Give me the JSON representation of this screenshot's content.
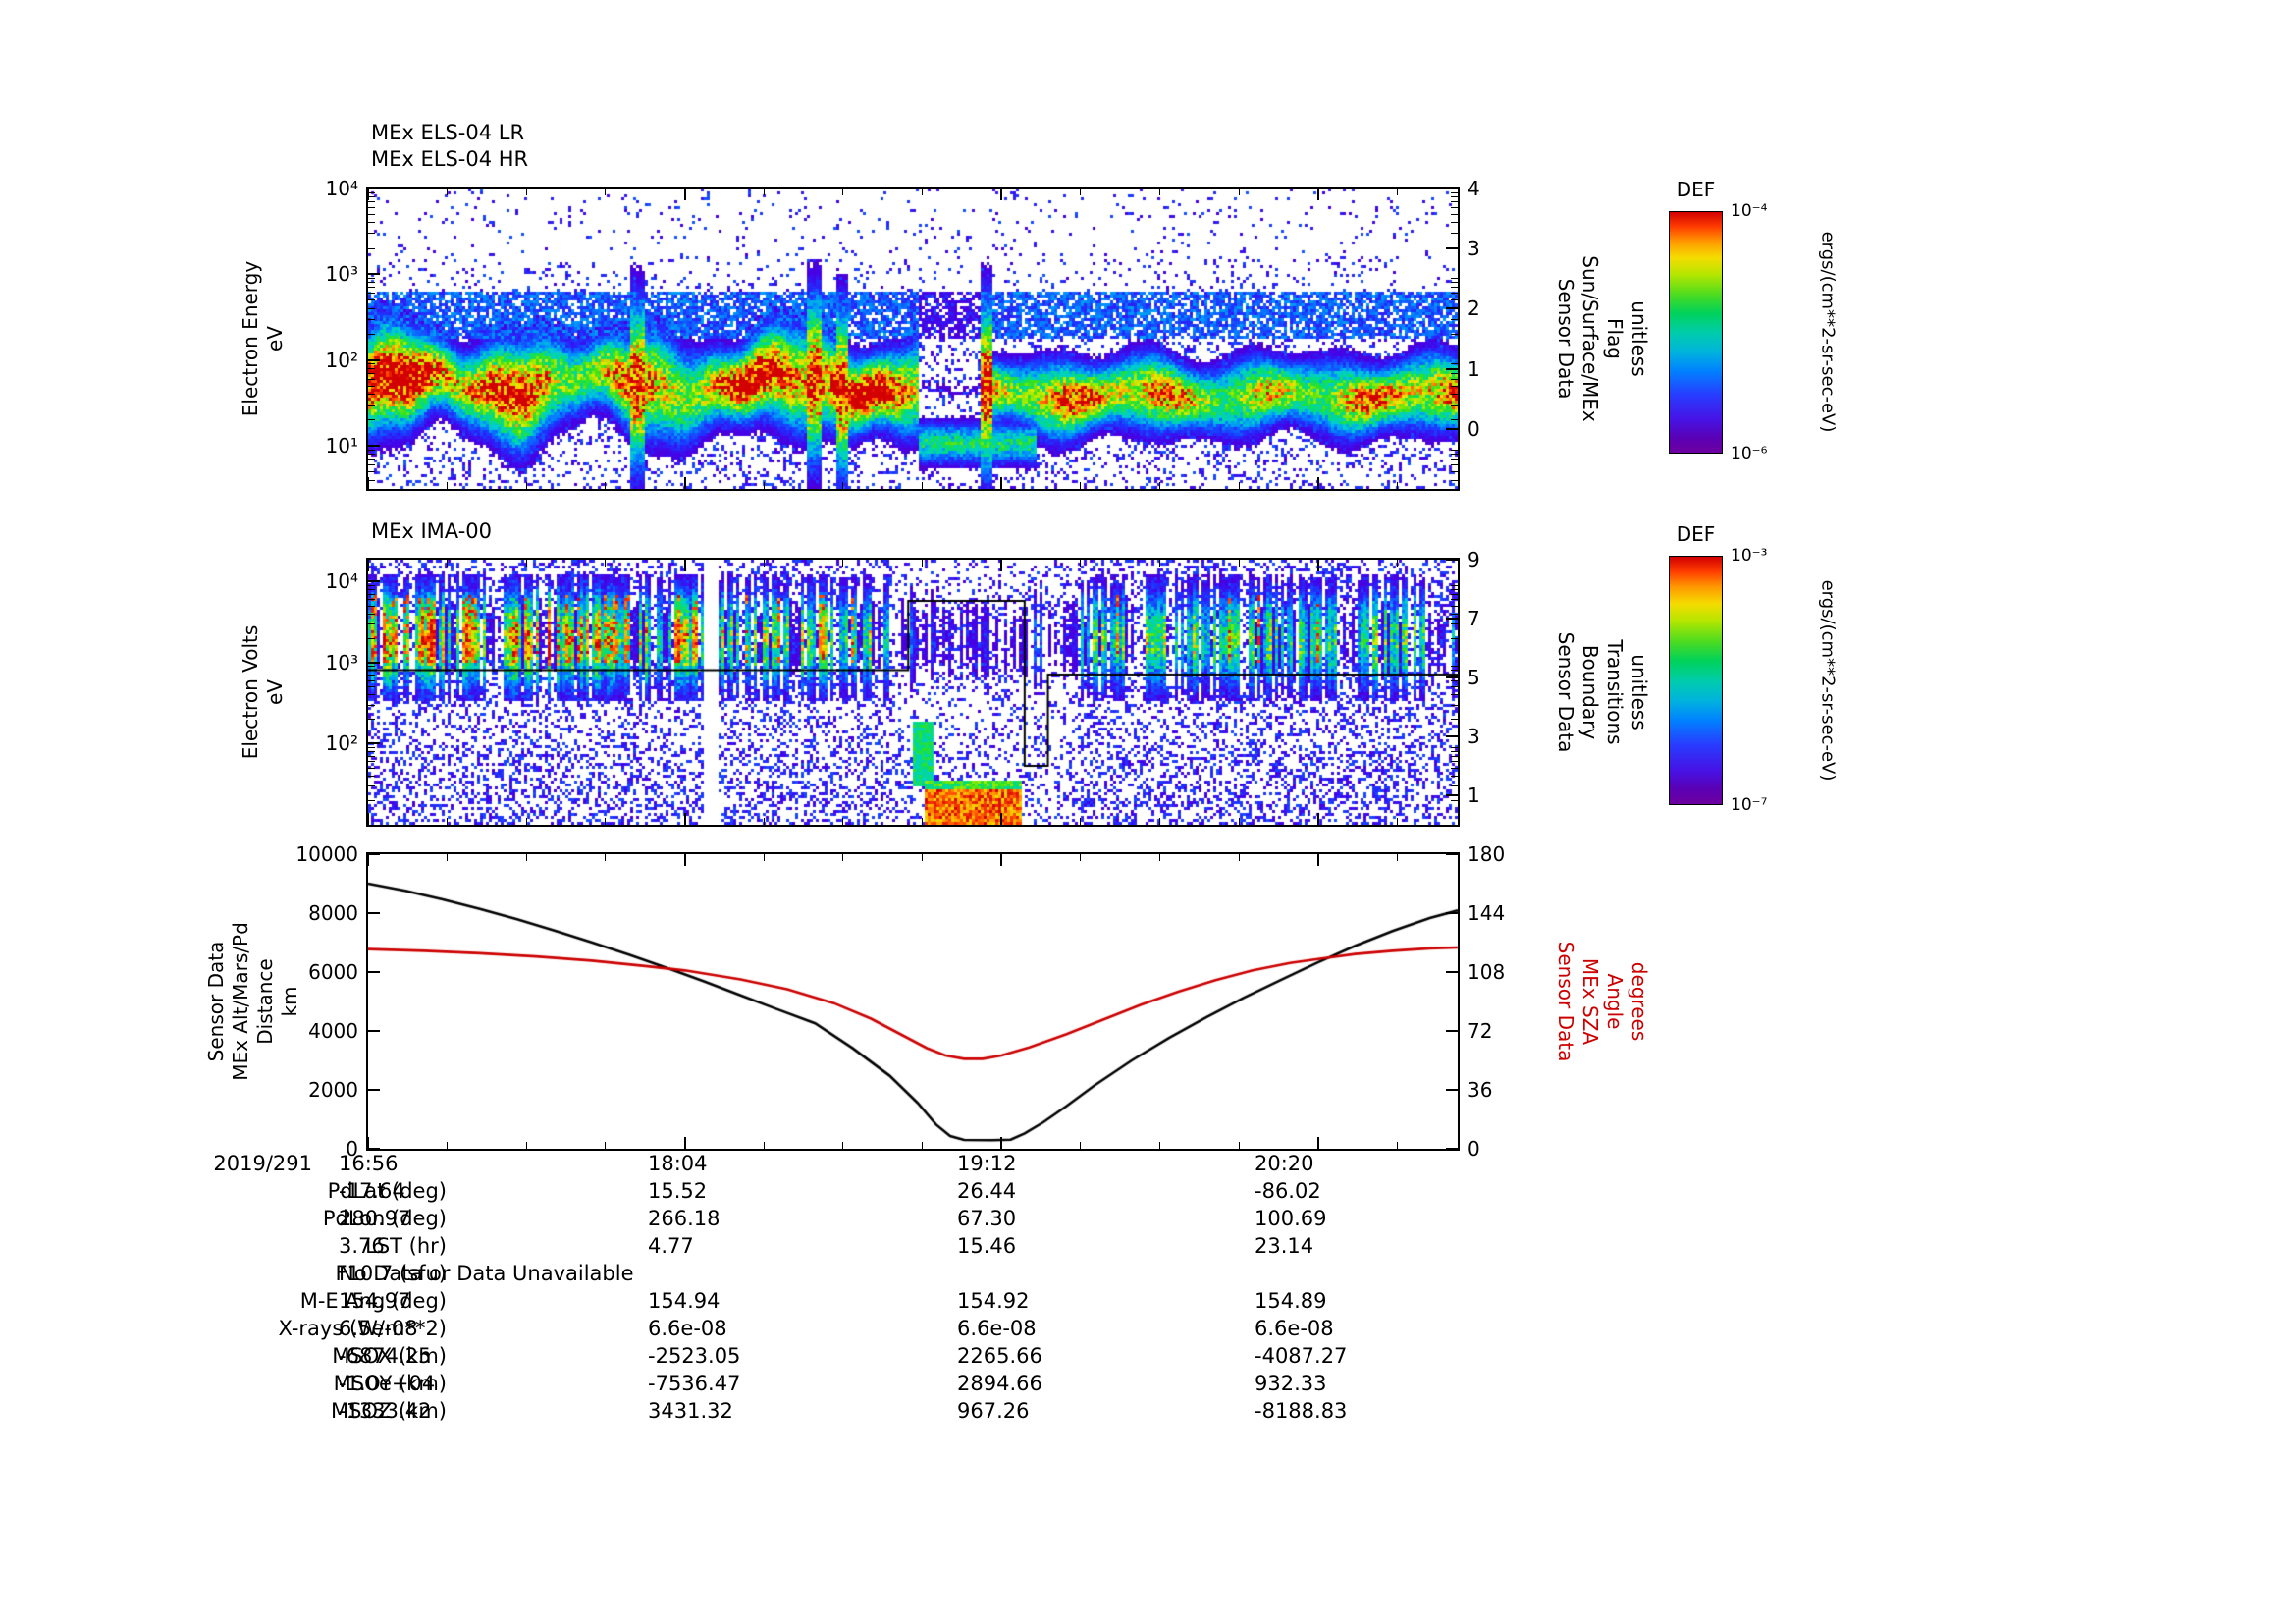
{
  "els": {
    "titles": [
      "MEx ELS-04 LR",
      "MEx ELS-04 HR"
    ],
    "left_label_lines": [
      "Electron Energy",
      "eV"
    ],
    "right_label_lines": [
      "Sensor Data",
      "Sun/Surface/MEx",
      "Flag",
      "unitless"
    ]
  },
  "ima": {
    "title": "MEx IMA-00",
    "left_label_lines": [
      "Electron Volts",
      "eV"
    ],
    "right_label_lines": [
      "Sensor Data",
      "Boundary",
      "Transitions",
      "unitless"
    ]
  },
  "alt": {
    "left_label_lines": [
      "Sensor Data",
      "MEx Alt/Mars/Pd",
      "Distance",
      "km"
    ],
    "right_label_lines": [
      "Sensor Data",
      "MEx SZA",
      "Angle",
      "degrees"
    ],
    "right_label_color": "#cc0000"
  },
  "colorbars": [
    {
      "title": "DEF",
      "top_label": "10⁻⁴",
      "bottom_label": "10⁻⁶",
      "units": "ergs/(cm**2-sr-sec-eV)"
    },
    {
      "title": "DEF",
      "top_label": "10⁻³",
      "bottom_label": "10⁻⁷",
      "units": "ergs/(cm**2-sr-sec-eV)"
    }
  ],
  "axes": {
    "els_left": {
      "range": [
        0.5,
        4.0
      ],
      "log": true,
      "ticks": [
        {
          "v": 4,
          "t": "10⁴"
        },
        {
          "v": 3,
          "t": "10³"
        },
        {
          "v": 2,
          "t": "10²"
        },
        {
          "v": 1,
          "t": "10¹"
        }
      ]
    },
    "els_right": {
      "range": [
        -1,
        4
      ],
      "ticks": [
        {
          "v": 4,
          "t": "4"
        },
        {
          "v": 3,
          "t": "3"
        },
        {
          "v": 2,
          "t": "2"
        },
        {
          "v": 1,
          "t": "1"
        },
        {
          "v": 0,
          "t": "0"
        }
      ]
    },
    "ima_left": {
      "range": [
        1.0,
        4.27
      ],
      "log": true,
      "ticks": [
        {
          "v": 4,
          "t": "10⁴"
        },
        {
          "v": 3,
          "t": "10³"
        },
        {
          "v": 2,
          "t": "10²"
        }
      ]
    },
    "ima_right": {
      "range": [
        0,
        9
      ],
      "ticks": [
        {
          "v": 9,
          "t": "9"
        },
        {
          "v": 7,
          "t": "7"
        },
        {
          "v": 5,
          "t": "5"
        },
        {
          "v": 3,
          "t": "3"
        },
        {
          "v": 1,
          "t": "1"
        }
      ]
    },
    "alt_left": {
      "range": [
        0,
        10000
      ],
      "ticks": [
        {
          "v": 10000,
          "t": "10000"
        },
        {
          "v": 8000,
          "t": "8000"
        },
        {
          "v": 6000,
          "t": "6000"
        },
        {
          "v": 4000,
          "t": "4000"
        },
        {
          "v": 2000,
          "t": "2000"
        },
        {
          "v": 0,
          "t": "0"
        }
      ]
    },
    "alt_right": {
      "range": [
        0,
        180
      ],
      "ticks": [
        {
          "v": 180,
          "t": "180"
        },
        {
          "v": 144,
          "t": "144"
        },
        {
          "v": 108,
          "t": "108"
        },
        {
          "v": 72,
          "t": "72"
        },
        {
          "v": 36,
          "t": "36"
        },
        {
          "v": 0,
          "t": "0"
        }
      ]
    },
    "x": {
      "range": [
        0,
        234
      ],
      "tick_minutes": [
        0,
        68,
        136,
        204
      ],
      "tick_labels": [
        "16:56",
        "18:04",
        "19:12",
        "20:20"
      ],
      "date": "2019/291"
    }
  },
  "table": {
    "rows": [
      {
        "label": "2019/291",
        "values": [
          "16:56",
          "18:04",
          "19:12",
          "20:20"
        ],
        "is_time_row": true
      },
      {
        "label": "PdLat (deg)",
        "values": [
          "-17.64",
          "15.52",
          "26.44",
          "-86.02"
        ]
      },
      {
        "label": "PdLon (deg)",
        "values": [
          "280.97",
          "266.18",
          "67.30",
          "100.69"
        ]
      },
      {
        "label": "LST (hr)",
        "values": [
          "3.76",
          "4.77",
          "15.46",
          "23.14"
        ]
      },
      {
        "label": "F10.7 (sfu)",
        "values": [],
        "message": "No Data or Data Unavailable"
      },
      {
        "label": "M-E Ang (deg)",
        "values": [
          "154.97",
          "154.94",
          "154.92",
          "154.89"
        ]
      },
      {
        "label": "X-rays (W/m**2)",
        "values": [
          "6.5e-08",
          "6.6e-08",
          "6.6e-08",
          "6.6e-08"
        ]
      },
      {
        "label": "MSOX (km)",
        "values": [
          "-6874.25",
          "-2523.05",
          "2265.66",
          "-4087.27"
        ]
      },
      {
        "label": "MSOY (km)",
        "values": [
          "-1.0e+04",
          "-7536.47",
          "2894.66",
          "932.33"
        ]
      },
      {
        "label": "MSOZ (km)",
        "values": [
          "-1333.42",
          "3431.32",
          "967.26",
          "-8188.83"
        ]
      }
    ]
  },
  "colors": {
    "line_black": "#000000",
    "line_red": "#cc0000",
    "axis": "#000000",
    "background": "#ffffff"
  },
  "chart_data": [
    {
      "type": "heatmap",
      "title": "MEx ELS-04 LR / MEx ELS-04 HR",
      "xlabel": "UT 2019/291 16:56 to ~20:50",
      "ylabel": "Electron Energy eV",
      "y_scale": "log",
      "ylim_exp": [
        0.5,
        4.0
      ],
      "yticks": [
        "10^1",
        "10^2",
        "10^3",
        "10^4"
      ],
      "right_axis": {
        "label": "Sensor Data Sun/Surface/MEx Flag unitless",
        "range": [
          -1,
          4
        ],
        "ticks": [
          0,
          1,
          2,
          3,
          4
        ]
      },
      "colorbar": {
        "title": "DEF",
        "units": "ergs/(cm**2-sr-sec-eV)",
        "min": "1e-6",
        "max": "1e-4"
      },
      "description": "Intense electron flux band ~20-120 eV (red ~1e-4) across the pass with green/cyan halo from ~8 eV to ~300 eV, faint blue/purple band 200-600 eV, sparse purple speckle to 10 keV; flux dropout ~18:54-19:07 near periapsis leaving a weak green line near 10 eV, a brief tall burst ~19:08, then a narrower 20-80 eV band until the end."
    },
    {
      "type": "heatmap",
      "title": "MEx IMA-00",
      "xlabel": "UT 2019/291 16:56 to ~20:50",
      "ylabel": "Electron Volts eV",
      "y_scale": "log",
      "ylim_exp": [
        1.0,
        4.27
      ],
      "yticks": [
        "10^2",
        "10^3",
        "10^4"
      ],
      "right_axis": {
        "label": "Sensor Data Boundary Transitions unitless",
        "range": [
          0,
          9
        ],
        "ticks": [
          1,
          3,
          5,
          7,
          9
        ]
      },
      "colorbar": {
        "title": "DEF",
        "units": "ergs/(cm**2-sr-sec-eV)",
        "min": "1e-7",
        "max": "1e-3"
      },
      "overlay_series": {
        "name": "Boundary Transitions",
        "axis": "right",
        "step_points": [
          [
            0,
            5.25
          ],
          [
            116,
            5.25
          ],
          [
            116,
            7.6
          ],
          [
            141,
            7.6
          ],
          [
            141,
            2.0
          ],
          [
            146,
            2.0
          ],
          [
            146,
            5.1
          ],
          [
            234,
            5.1
          ]
        ]
      },
      "description": "Vertically striped ion flux 500 eV-15 keV (green/cyan stripes, red cores before ~18:08), narrow white data gap ~18:08-18:11, quieter purple-speckled interval ~18:48-19:28 with an intense red/yellow low-energy (15-35 eV) blob ~18:55-19:16, striped cyan flux resuming to the end; black step line shows boundary-transition flag."
    },
    {
      "type": "line",
      "x": {
        "ticks": [
          "16:56",
          "18:04",
          "19:12",
          "20:20"
        ],
        "tick_minutes": [
          0,
          68,
          136,
          204
        ],
        "range_minutes": [
          0,
          234
        ],
        "date": "2019/291"
      },
      "left_axis": {
        "label": "Sensor Data MEx Alt/Mars/Pd Distance km",
        "range": [
          0,
          10000
        ],
        "ticks": [
          0,
          2000,
          4000,
          6000,
          8000,
          10000
        ]
      },
      "right_axis": {
        "label": "Sensor Data MEx SZA Angle degrees",
        "range": [
          0,
          180
        ],
        "ticks": [
          0,
          36,
          72,
          108,
          144,
          180
        ],
        "color": "#cc0000"
      },
      "series": [
        {
          "name": "MEx Alt/Mars/Pd Distance (km)",
          "color": "#000000",
          "axis": "left",
          "points": [
            [
              0,
              9000
            ],
            [
              8,
              8760
            ],
            [
              16,
              8470
            ],
            [
              24,
              8140
            ],
            [
              32,
              7790
            ],
            [
              40,
              7410
            ],
            [
              48,
              7010
            ],
            [
              56,
              6590
            ],
            [
              64,
              6150
            ],
            [
              72,
              5690
            ],
            [
              80,
              5210
            ],
            [
              88,
              4730
            ],
            [
              96,
              4260
            ],
            [
              104,
              3420
            ],
            [
              112,
              2480
            ],
            [
              118,
              1560
            ],
            [
              122,
              820
            ],
            [
              125,
              430
            ],
            [
              128,
              300
            ],
            [
              134,
              290
            ],
            [
              138,
              310
            ],
            [
              141,
              520
            ],
            [
              145,
              900
            ],
            [
              150,
              1450
            ],
            [
              156,
              2150
            ],
            [
              164,
              3000
            ],
            [
              172,
              3760
            ],
            [
              180,
              4460
            ],
            [
              188,
              5120
            ],
            [
              196,
              5730
            ],
            [
              204,
              6330
            ],
            [
              212,
              6890
            ],
            [
              220,
              7390
            ],
            [
              228,
              7830
            ],
            [
              234,
              8090
            ]
          ]
        },
        {
          "name": "MEx SZA Angle (degrees)",
          "color": "#cc0000",
          "axis": "right",
          "points": [
            [
              0,
              122
            ],
            [
              12,
              121
            ],
            [
              24,
              119.5
            ],
            [
              36,
              117.5
            ],
            [
              48,
              115
            ],
            [
              60,
              111.5
            ],
            [
              68,
              109
            ],
            [
              80,
              103.5
            ],
            [
              90,
              97.5
            ],
            [
              100,
              89
            ],
            [
              108,
              79.5
            ],
            [
              114,
              70.5
            ],
            [
              120,
              61.5
            ],
            [
              124,
              57
            ],
            [
              128,
              55
            ],
            [
              132,
              55
            ],
            [
              136,
              57
            ],
            [
              142,
              62
            ],
            [
              150,
              70
            ],
            [
              158,
              79
            ],
            [
              166,
              88
            ],
            [
              174,
              96
            ],
            [
              182,
              103
            ],
            [
              190,
              109
            ],
            [
              198,
              113.5
            ],
            [
              204,
              116
            ],
            [
              212,
              119
            ],
            [
              220,
              121
            ],
            [
              228,
              122.5
            ],
            [
              234,
              123
            ]
          ]
        }
      ]
    }
  ]
}
